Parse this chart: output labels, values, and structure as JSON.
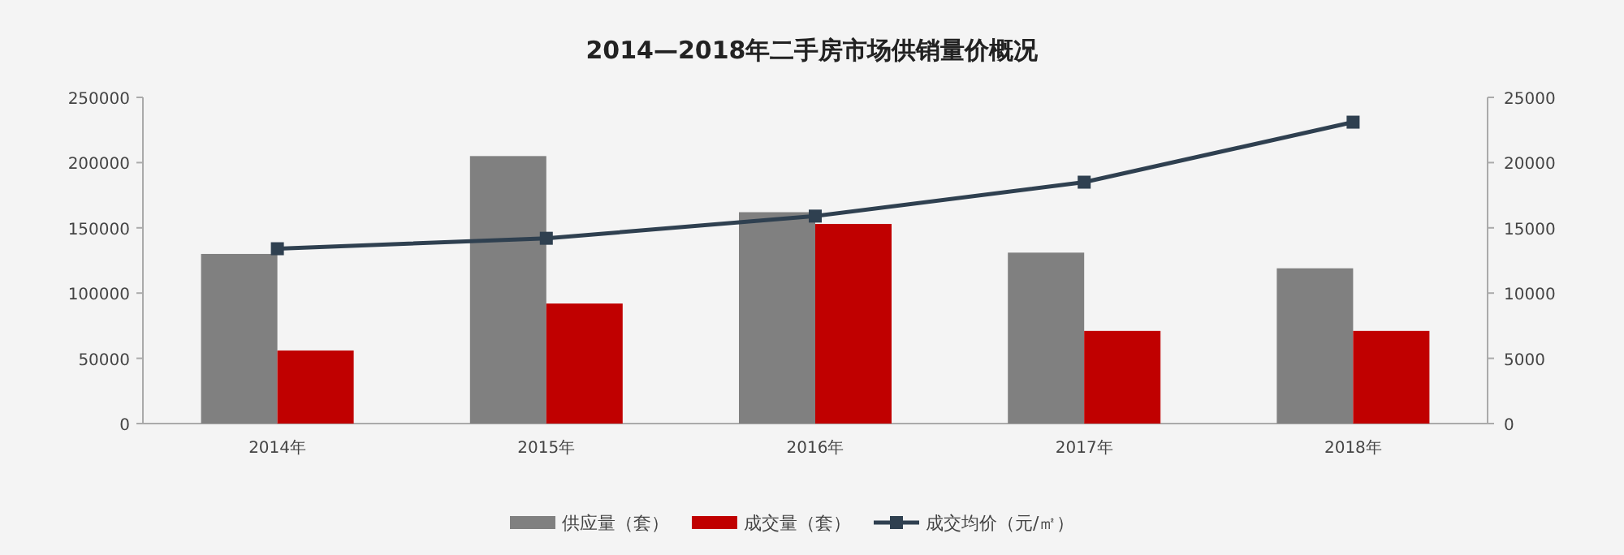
{
  "chart_data": {
    "type": "bar",
    "title": "2014—2018年二手房市场供销量价概况",
    "categories": [
      "2014年",
      "2015年",
      "2016年",
      "2017年",
      "2018年"
    ],
    "series": [
      {
        "name": "供应量（套）",
        "color": "#808080",
        "values": [
          130000,
          205000,
          162000,
          131000,
          119000
        ]
      },
      {
        "name": "成交量（套）",
        "color": "#c00000",
        "values": [
          56000,
          92000,
          153000,
          71000,
          71000
        ]
      },
      {
        "name": "成交均价（元/㎡）",
        "type": "line",
        "axis": "y2",
        "color": "#2f4050",
        "marker": "square",
        "values": [
          13400,
          14200,
          15900,
          18500,
          23100
        ]
      }
    ],
    "ylim": [
      0,
      250000
    ],
    "yticks": [
      0,
      50000,
      100000,
      150000,
      200000,
      250000
    ],
    "y2lim": [
      0,
      25000
    ],
    "y2ticks": [
      0,
      5000,
      10000,
      15000,
      20000,
      25000
    ],
    "grid": false,
    "legend": "bottom"
  }
}
